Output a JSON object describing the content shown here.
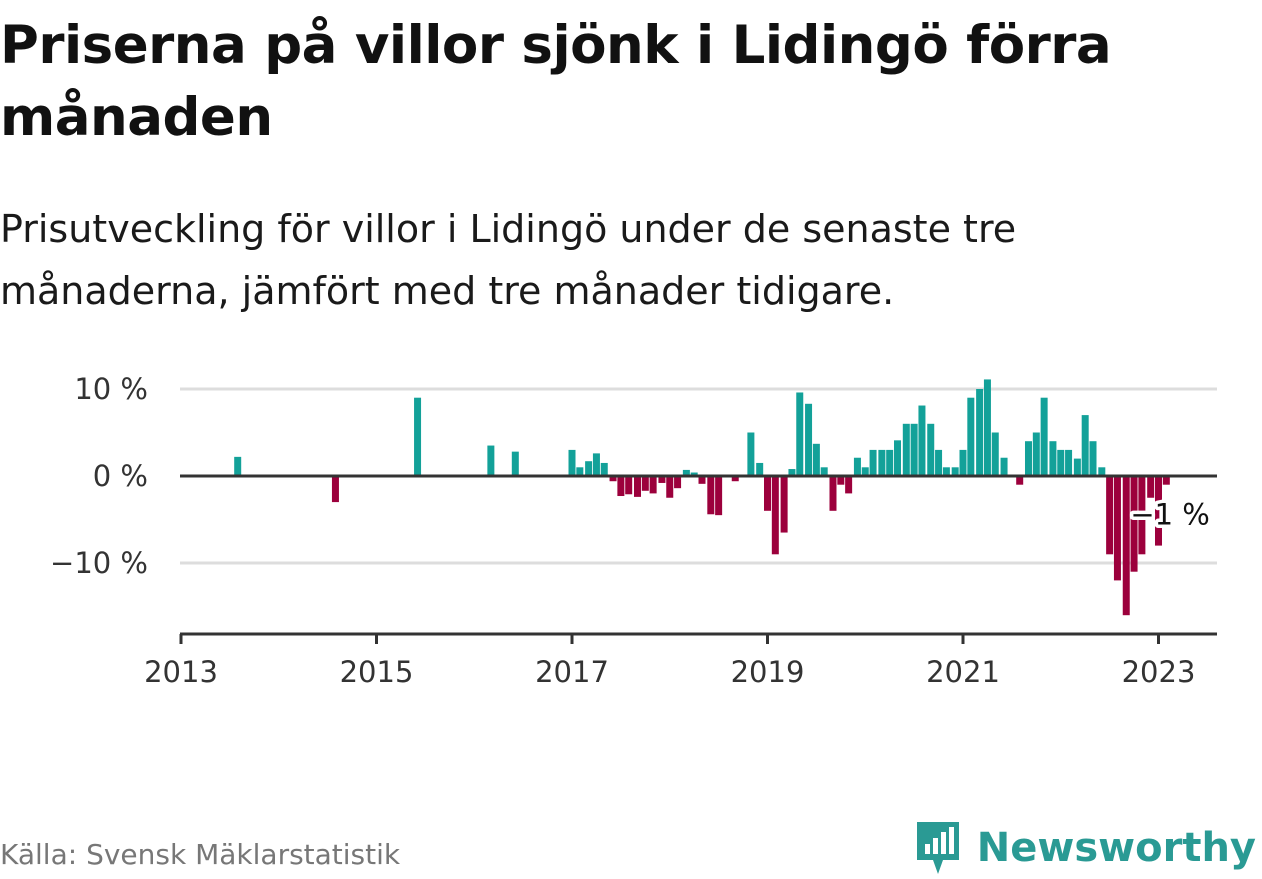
{
  "header": {
    "title": "Priserna på villor sjönk i Lidingö förra månaden",
    "subtitle": "Prisutveckling för villor i Lidingö under de senaste tre månaderna, jämfört med tre månader tidigare."
  },
  "footer": {
    "source": "Källa: Svensk Mäklarstatistik",
    "brand": "Newsworthy"
  },
  "colors": {
    "positive": "#13a199",
    "negative": "#9c003c",
    "axis": "#333333",
    "grid": "#dddddd",
    "brand": "#2a9a94"
  },
  "chart_data": {
    "type": "bar",
    "title": "",
    "xlabel": "",
    "ylabel": "",
    "ylim": [
      -18,
      12
    ],
    "xlim": [
      2013.0,
      2023.6
    ],
    "yticks": [
      {
        "value": 10,
        "label": "10 %"
      },
      {
        "value": 0,
        "label": "0 %"
      },
      {
        "value": -10,
        "label": "−10 %"
      }
    ],
    "xticks": [
      {
        "value": 2013,
        "label": "2013"
      },
      {
        "value": 2015,
        "label": "2015"
      },
      {
        "value": 2017,
        "label": "2017"
      },
      {
        "value": 2019,
        "label": "2019"
      },
      {
        "value": 2021,
        "label": "2021"
      },
      {
        "value": 2023,
        "label": "2023"
      }
    ],
    "grid": true,
    "annotation": {
      "x": 2023.08,
      "y": -1,
      "label": "−1 %"
    },
    "bars": [
      {
        "x": 2013.58,
        "y": 2.2
      },
      {
        "x": 2014.58,
        "y": -3.0
      },
      {
        "x": 2015.42,
        "y": 9.0
      },
      {
        "x": 2016.17,
        "y": 3.5
      },
      {
        "x": 2016.42,
        "y": 2.8
      },
      {
        "x": 2017.0,
        "y": 3.0
      },
      {
        "x": 2017.08,
        "y": 1.0
      },
      {
        "x": 2017.17,
        "y": 1.7
      },
      {
        "x": 2017.25,
        "y": 2.6
      },
      {
        "x": 2017.33,
        "y": 1.5
      },
      {
        "x": 2017.42,
        "y": -0.6
      },
      {
        "x": 2017.5,
        "y": -2.3
      },
      {
        "x": 2017.58,
        "y": -2.1
      },
      {
        "x": 2017.67,
        "y": -2.4
      },
      {
        "x": 2017.75,
        "y": -1.7
      },
      {
        "x": 2017.83,
        "y": -2.0
      },
      {
        "x": 2017.92,
        "y": -0.8
      },
      {
        "x": 2018.0,
        "y": -2.5
      },
      {
        "x": 2018.08,
        "y": -1.4
      },
      {
        "x": 2018.17,
        "y": 0.7
      },
      {
        "x": 2018.25,
        "y": 0.4
      },
      {
        "x": 2018.33,
        "y": -0.9
      },
      {
        "x": 2018.42,
        "y": -4.4
      },
      {
        "x": 2018.5,
        "y": -4.5
      },
      {
        "x": 2018.67,
        "y": -0.6
      },
      {
        "x": 2018.83,
        "y": 5.0
      },
      {
        "x": 2018.92,
        "y": 1.5
      },
      {
        "x": 2019.0,
        "y": -4.0
      },
      {
        "x": 2019.08,
        "y": -9.0
      },
      {
        "x": 2019.17,
        "y": -6.5
      },
      {
        "x": 2019.25,
        "y": 0.8
      },
      {
        "x": 2019.33,
        "y": 9.6
      },
      {
        "x": 2019.42,
        "y": 8.3
      },
      {
        "x": 2019.5,
        "y": 3.7
      },
      {
        "x": 2019.58,
        "y": 1.0
      },
      {
        "x": 2019.67,
        "y": -4.0
      },
      {
        "x": 2019.75,
        "y": -1.0
      },
      {
        "x": 2019.83,
        "y": -2.0
      },
      {
        "x": 2019.92,
        "y": 2.1
      },
      {
        "x": 2020.0,
        "y": 1.0
      },
      {
        "x": 2020.08,
        "y": 3.0
      },
      {
        "x": 2020.17,
        "y": 3.0
      },
      {
        "x": 2020.25,
        "y": 3.0
      },
      {
        "x": 2020.33,
        "y": 4.1
      },
      {
        "x": 2020.42,
        "y": 6.0
      },
      {
        "x": 2020.5,
        "y": 6.0
      },
      {
        "x": 2020.58,
        "y": 8.1
      },
      {
        "x": 2020.67,
        "y": 6.0
      },
      {
        "x": 2020.75,
        "y": 3.0
      },
      {
        "x": 2020.83,
        "y": 1.0
      },
      {
        "x": 2020.92,
        "y": 1.0
      },
      {
        "x": 2021.0,
        "y": 3.0
      },
      {
        "x": 2021.08,
        "y": 9.0
      },
      {
        "x": 2021.17,
        "y": 10.0
      },
      {
        "x": 2021.25,
        "y": 11.1
      },
      {
        "x": 2021.33,
        "y": 5.0
      },
      {
        "x": 2021.42,
        "y": 2.1
      },
      {
        "x": 2021.58,
        "y": -1.0
      },
      {
        "x": 2021.67,
        "y": 4.0
      },
      {
        "x": 2021.75,
        "y": 5.0
      },
      {
        "x": 2021.83,
        "y": 9.0
      },
      {
        "x": 2021.92,
        "y": 4.0
      },
      {
        "x": 2022.0,
        "y": 3.0
      },
      {
        "x": 2022.08,
        "y": 3.0
      },
      {
        "x": 2022.17,
        "y": 2.0
      },
      {
        "x": 2022.25,
        "y": 7.0
      },
      {
        "x": 2022.33,
        "y": 4.0
      },
      {
        "x": 2022.42,
        "y": 1.0
      },
      {
        "x": 2022.5,
        "y": -9.0
      },
      {
        "x": 2022.58,
        "y": -12.0
      },
      {
        "x": 2022.67,
        "y": -16.0
      },
      {
        "x": 2022.75,
        "y": -11.0
      },
      {
        "x": 2022.83,
        "y": -9.0
      },
      {
        "x": 2022.92,
        "y": -2.5
      },
      {
        "x": 2023.0,
        "y": -8.0
      },
      {
        "x": 2023.08,
        "y": -1.0
      }
    ]
  }
}
